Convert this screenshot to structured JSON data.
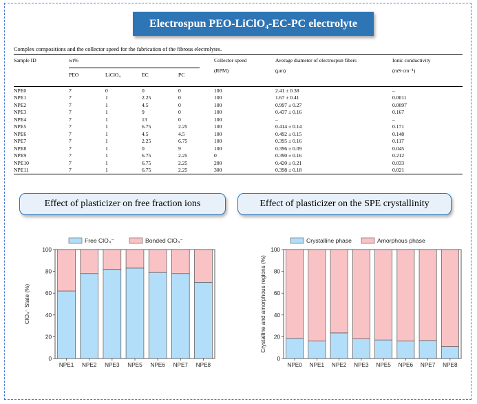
{
  "title": "Electrospun PEO-LiClO₄-EC-PC electrolyte",
  "table": {
    "caption": "Complex compositions and the collector speed for the fabrication of the fibrous electrolytes.",
    "headers": {
      "sample_id": "Sample ID",
      "wt": "wt%",
      "peo": "PEO",
      "liclo4": "LiClO₄",
      "ec": "EC",
      "pc": "PC",
      "speed_1": "Collector speed",
      "speed_2": "(RPM)",
      "diam_1": "Average diameter of electrospun fibers",
      "diam_2": "(μm)",
      "cond_1": "Ionic conductivity",
      "cond_2": "(mS·cm⁻¹)"
    },
    "rows": [
      [
        "NPE0",
        "7",
        "0",
        "0",
        "0",
        "100",
        "2.41 ± 0.38",
        "–"
      ],
      [
        "NPE1",
        "7",
        "1",
        "2.25",
        "0",
        "100",
        "1.67 ± 0.41",
        "0.0011"
      ],
      [
        "NPE2",
        "7",
        "1",
        "4.5",
        "0",
        "100",
        "0.997 ± 0.27",
        "0.0097"
      ],
      [
        "NPE3",
        "7",
        "1",
        "9",
        "0",
        "100",
        "0.437 ± 0.16",
        "0.167"
      ],
      [
        "NPE4",
        "7",
        "1",
        "13",
        "0",
        "100",
        "–",
        "–"
      ],
      [
        "NPE5",
        "7",
        "1",
        "6.75",
        "2.25",
        "100",
        "0.414 ± 0.14",
        "0.171"
      ],
      [
        "NPE6",
        "7",
        "1",
        "4.5",
        "4.5",
        "100",
        "0.492 ± 0.15",
        "0.148"
      ],
      [
        "NPE7",
        "7",
        "1",
        "2.25",
        "6.75",
        "100",
        "0.395 ± 0.16",
        "0.117"
      ],
      [
        "NPE8",
        "7",
        "1",
        "0",
        "9",
        "100",
        "0.396 ± 0.09",
        "0.045"
      ],
      [
        "NPE9",
        "7",
        "1",
        "6.75",
        "2.25",
        "0",
        "0.390 ± 0.16",
        "0.212"
      ],
      [
        "NPE10",
        "7",
        "1",
        "6.75",
        "2.25",
        "200",
        "0.420 ± 0.21",
        "0.033"
      ],
      [
        "NPE11",
        "7",
        "1",
        "6.75",
        "2.25",
        "300",
        "0.398 ± 0.18",
        "0.021"
      ]
    ]
  },
  "section_left": "Effect of plasticizer on free fraction ions",
  "section_right": "Effect of plasticizer on the SPE crystallinity",
  "colors": {
    "blue_series": "#b3defa",
    "pink_series": "#f9c3c6",
    "title_bg": "#2e75b6",
    "frame": "#4a7bd0"
  },
  "chart_data": [
    {
      "type": "bar",
      "stacked": true,
      "categories": [
        "NPE1",
        "NPE2",
        "NPE3",
        "NPE5",
        "NPE6",
        "NPE7",
        "NPE8"
      ],
      "series": [
        {
          "name": "Free ClO₄⁻",
          "values": [
            62,
            78,
            82,
            83,
            79,
            78,
            70
          ]
        },
        {
          "name": "Bonded ClO₄⁻",
          "values": [
            38,
            22,
            18,
            17,
            21,
            22,
            30
          ]
        }
      ],
      "ylabel": "ClO₄⁻ State (%)",
      "ylim": [
        0,
        100
      ],
      "yticks": [
        0,
        20,
        40,
        60,
        80,
        100
      ],
      "legend": "top"
    },
    {
      "type": "bar",
      "stacked": true,
      "categories": [
        "NPE0",
        "NPE1",
        "NPE2",
        "NPE3",
        "NPE5",
        "NPE6",
        "NPE7",
        "NPE8"
      ],
      "series": [
        {
          "name": "Crystalline phase",
          "values": [
            18.5,
            16,
            23.5,
            18,
            17,
            16,
            16.5,
            11
          ]
        },
        {
          "name": "Amorphous phase",
          "values": [
            81.5,
            84,
            76.5,
            82,
            83,
            84,
            83.5,
            89
          ]
        }
      ],
      "ylabel": "Crystalline and amorphous regions (%)",
      "ylim": [
        0,
        100
      ],
      "yticks": [
        0,
        20,
        40,
        60,
        80,
        100
      ],
      "legend": "top"
    }
  ]
}
